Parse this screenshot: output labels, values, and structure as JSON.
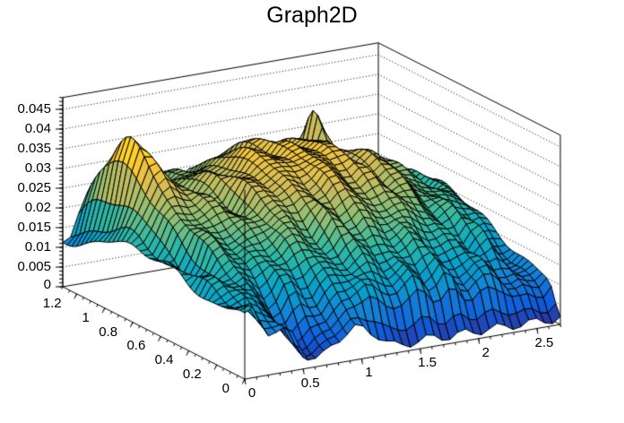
{
  "chart_data": {
    "type": "surface3d",
    "title": "Graph2D",
    "background_color": "#FFFFFF",
    "axis_color": "#000000",
    "grid_style": "dotted",
    "legend": "none",
    "x_axis": {
      "min": 0,
      "max": 2.7,
      "tick_values": [
        0,
        0.5,
        1,
        1.5,
        2,
        2.5
      ],
      "tick_labels": [
        "0",
        "0.5",
        "1",
        "1.5",
        "2",
        "2.5"
      ],
      "minor_step": 0.1
    },
    "y_axis": {
      "min": 0,
      "max": 1.3,
      "tick_values": [
        0,
        0.2,
        0.4,
        0.6,
        0.8,
        1,
        1.2
      ],
      "tick_labels": [
        "0",
        "0.2",
        "0.4",
        "0.6",
        "0.8",
        "1",
        "1.2"
      ],
      "minor_step": 0.05
    },
    "z_axis": {
      "min": 0,
      "max": 0.048,
      "tick_values": [
        0.005,
        0.01,
        0.015,
        0.02,
        0.025,
        0.03,
        0.035,
        0.04,
        0.045
      ],
      "tick_labels": [
        "0.005",
        "0.01",
        "0.015",
        "0.02",
        "0.025",
        "0.03",
        "0.035",
        "0.04",
        "0.045"
      ],
      "zero_label": "0",
      "minor_step": 0.001
    },
    "palette_stops": [
      "#352A87",
      "#0F5CDD",
      "#1481D6",
      "#06A4CA",
      "#2EB7A4",
      "#87BF77",
      "#D1BB59",
      "#FEC832",
      "#F9FB0E"
    ],
    "z_color_max": 0.042,
    "grid": {
      "nx": 40,
      "ny": 40
    },
    "surface_model": {
      "base_dome": {
        "amp": 0.034,
        "cx": 1.45,
        "cy": 0.85,
        "sx": 1.1,
        "sy": 0.55
      },
      "left_peak": {
        "amp": 0.019,
        "cx": 0.3,
        "cy": 1.05,
        "sx": 0.13,
        "sy": 0.22
      },
      "back_spike": {
        "amp": 0.012,
        "cx": 2.05,
        "cy": 1.2,
        "sx": 0.035,
        "sy": 0.055
      },
      "left_shelf": {
        "amp": 0.008,
        "sx": 0.5,
        "sy": 0.45
      },
      "front_valley": {
        "depth": 0.93,
        "cx": 0.62,
        "skew": -0.3,
        "sx": 0.17,
        "sy": 0.14
      },
      "front_cliff": {
        "depth": 0.92,
        "sy": 0.035,
        "x_start": 0.85,
        "x_ramp": 0.4
      },
      "noise": [
        {
          "amp": 0.0018,
          "fx": 14.0,
          "fy": 11.0,
          "px": 3.1,
          "py": 2.1,
          "phase": 1.3
        },
        {
          "amp": 0.0011,
          "fx": 23.0,
          "fy": 17.0,
          "px": -5.1,
          "py": 4.3,
          "phase": 0.7
        }
      ],
      "noise_shape": {
        "base": 1.45,
        "k": 0.9,
        "min": 0.35,
        "max": 1.45
      },
      "floor_ripple": {
        "base": 0.0012,
        "amp": 0.0012,
        "fx": 21.0,
        "fy": 3.0
      },
      "z_clamp": [
        0.0004,
        0.046
      ]
    }
  }
}
